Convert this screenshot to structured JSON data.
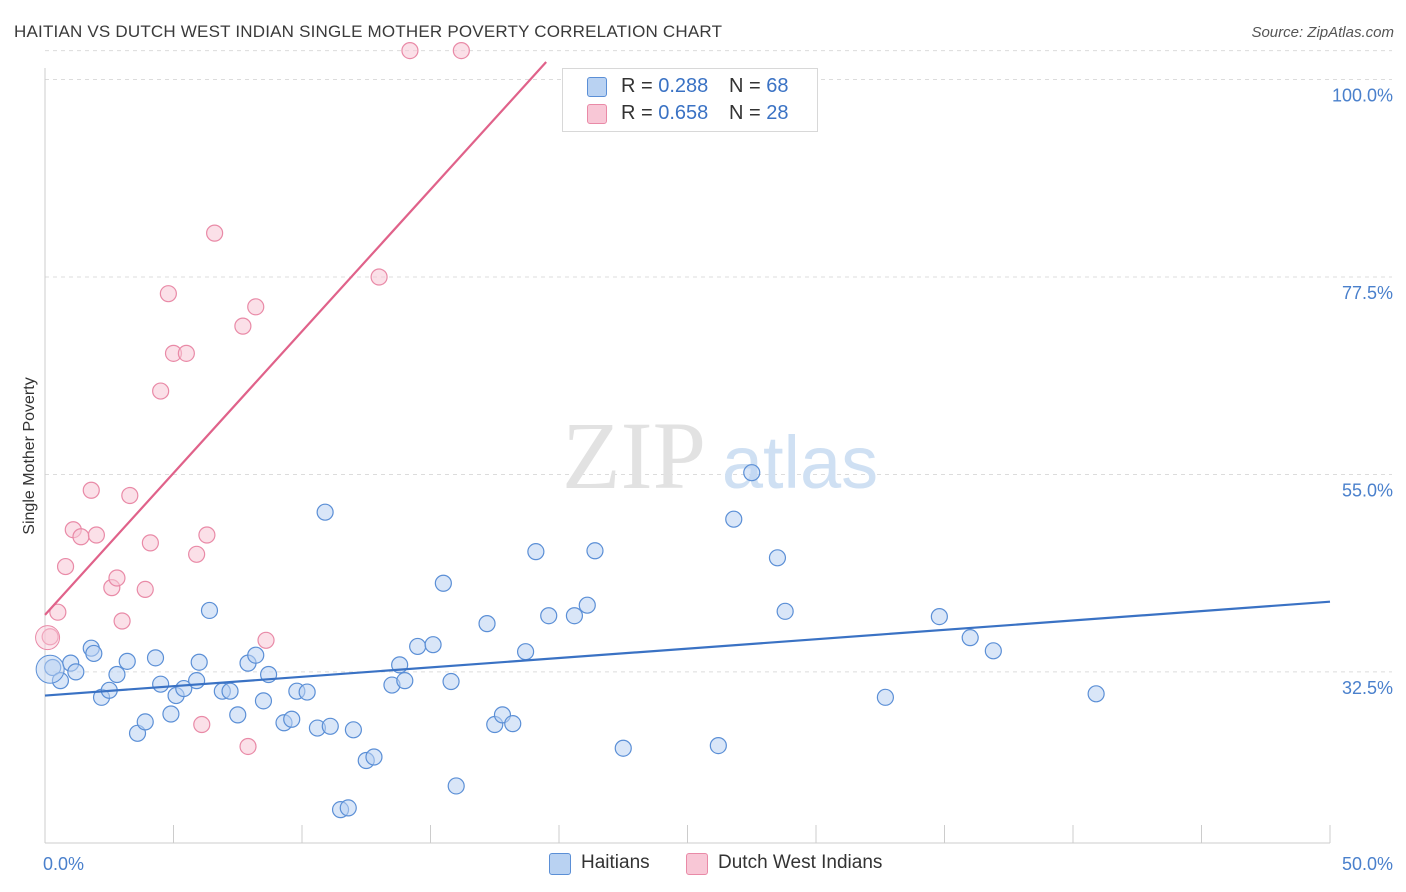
{
  "title": "HAITIAN VS DUTCH WEST INDIAN SINGLE MOTHER POVERTY CORRELATION CHART",
  "source": "Source: ZipAtlas.com",
  "watermark": {
    "zip": "ZIP",
    "atlas": "atlas"
  },
  "legend": {
    "haitians": {
      "r_label": "R = ",
      "r_value": "0.288",
      "n_label": "N = ",
      "n_value": "68"
    },
    "dutch": {
      "r_label": "R = ",
      "r_value": "0.658",
      "n_label": "N = ",
      "n_value": "28"
    }
  },
  "chart_data": {
    "type": "scatter",
    "title": "HAITIAN VS DUTCH WEST INDIAN SINGLE MOTHER POVERTY CORRELATION CHART",
    "xlabel": "",
    "ylabel": "Single Mother Poverty",
    "xlim": [
      0,
      50
    ],
    "ylim": [
      13,
      102
    ],
    "x_tick_labels": [
      {
        "value": 0,
        "label": "0.0%"
      },
      {
        "value": 50,
        "label": "50.0%"
      }
    ],
    "y_tick_labels": [
      {
        "value": 32.5,
        "label": "32.5%"
      },
      {
        "value": 55.0,
        "label": "55.0%"
      },
      {
        "value": 77.5,
        "label": "77.5%"
      },
      {
        "value": 100.0,
        "label": "100.0%"
      }
    ],
    "grid": "horizontal dashed",
    "legend_position": "top-center",
    "series": [
      {
        "name": "Haitians",
        "color": "#5b8fd6",
        "fill": "#b9d2f2",
        "trend": {
          "x": [
            0,
            50
          ],
          "y": [
            29.8,
            40.5
          ],
          "color": "#3a72c4"
        },
        "points": [
          [
            0.3,
            33
          ],
          [
            0.6,
            31.5
          ],
          [
            1.0,
            33.5
          ],
          [
            1.2,
            32.5
          ],
          [
            1.8,
            35.2
          ],
          [
            1.9,
            34.6
          ],
          [
            2.2,
            29.6
          ],
          [
            2.5,
            30.4
          ],
          [
            2.8,
            32.2
          ],
          [
            3.2,
            33.7
          ],
          [
            3.6,
            25.5
          ],
          [
            3.9,
            26.8
          ],
          [
            4.3,
            34.1
          ],
          [
            4.5,
            31.1
          ],
          [
            4.9,
            27.7
          ],
          [
            5.1,
            29.8
          ],
          [
            5.4,
            30.6
          ],
          [
            5.9,
            31.5
          ],
          [
            6.0,
            33.6
          ],
          [
            6.4,
            39.5
          ],
          [
            6.9,
            30.3
          ],
          [
            7.2,
            30.3
          ],
          [
            7.5,
            27.6
          ],
          [
            7.9,
            33.5
          ],
          [
            8.2,
            34.4
          ],
          [
            8.5,
            29.2
          ],
          [
            8.7,
            32.2
          ],
          [
            9.3,
            26.7
          ],
          [
            9.6,
            27.1
          ],
          [
            9.8,
            30.3
          ],
          [
            10.2,
            30.2
          ],
          [
            10.6,
            26.1
          ],
          [
            10.9,
            50.7
          ],
          [
            11.1,
            26.3
          ],
          [
            11.5,
            16.8
          ],
          [
            11.8,
            17.0
          ],
          [
            12.0,
            25.9
          ],
          [
            12.5,
            22.4
          ],
          [
            12.8,
            22.8
          ],
          [
            13.5,
            31.0
          ],
          [
            13.8,
            33.3
          ],
          [
            14.0,
            31.5
          ],
          [
            14.5,
            35.4
          ],
          [
            15.1,
            35.6
          ],
          [
            15.5,
            42.6
          ],
          [
            15.8,
            31.4
          ],
          [
            16.0,
            19.5
          ],
          [
            17.2,
            38.0
          ],
          [
            17.5,
            26.5
          ],
          [
            17.8,
            27.6
          ],
          [
            18.2,
            26.6
          ],
          [
            18.7,
            34.8
          ],
          [
            19.1,
            46.2
          ],
          [
            19.6,
            38.9
          ],
          [
            20.6,
            38.9
          ],
          [
            21.1,
            40.1
          ],
          [
            21.4,
            46.3
          ],
          [
            22.5,
            23.8
          ],
          [
            26.2,
            24.1
          ],
          [
            26.8,
            49.9
          ],
          [
            27.5,
            55.2
          ],
          [
            28.5,
            45.5
          ],
          [
            28.8,
            39.4
          ],
          [
            32.7,
            29.6
          ],
          [
            34.8,
            38.8
          ],
          [
            36.0,
            36.4
          ],
          [
            36.9,
            34.9
          ],
          [
            40.9,
            30.0
          ]
        ]
      },
      {
        "name": "Dutch West Indians",
        "color": "#e98aa7",
        "fill": "#f8c7d6",
        "trend": {
          "x": [
            0,
            19.5
          ],
          "y": [
            39,
            102
          ],
          "color": "#e0628a"
        },
        "points": [
          [
            0.2,
            36.5
          ],
          [
            0.5,
            39.3
          ],
          [
            0.8,
            44.5
          ],
          [
            1.1,
            48.7
          ],
          [
            1.4,
            47.9
          ],
          [
            1.8,
            53.2
          ],
          [
            2.0,
            48.1
          ],
          [
            2.6,
            42.1
          ],
          [
            2.8,
            43.2
          ],
          [
            3.0,
            38.3
          ],
          [
            3.3,
            52.6
          ],
          [
            3.9,
            41.9
          ],
          [
            4.1,
            47.2
          ],
          [
            4.5,
            64.5
          ],
          [
            4.8,
            75.6
          ],
          [
            5.0,
            68.8
          ],
          [
            5.5,
            68.8
          ],
          [
            5.9,
            45.9
          ],
          [
            6.1,
            26.5
          ],
          [
            6.3,
            48.1
          ],
          [
            6.6,
            82.5
          ],
          [
            7.7,
            71.9
          ],
          [
            7.9,
            24.0
          ],
          [
            8.2,
            74.1
          ],
          [
            8.6,
            36.1
          ],
          [
            13.0,
            77.5
          ],
          [
            14.2,
            103.3
          ],
          [
            16.2,
            103.3
          ]
        ]
      }
    ]
  },
  "bottom_legend": {
    "haitians": "Haitians",
    "dutch": "Dutch West Indians"
  },
  "colors": {
    "blue": "#3a72c4",
    "pink": "#e0628a",
    "grid": "#dcdcdc",
    "tick_label": "#4a80cc"
  }
}
